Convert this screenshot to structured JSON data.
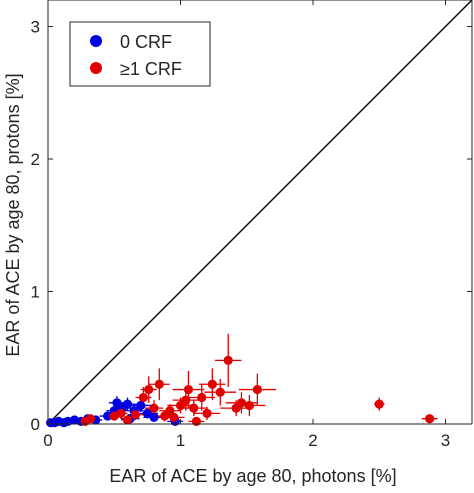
{
  "chart_data": {
    "type": "scatter",
    "xlabel": "EAR of ACE by age 80, photons [%]",
    "ylabel": "EAR of ACE by age 80, protons [%]",
    "xlim": [
      0,
      3.2
    ],
    "ylim": [
      0,
      3.2
    ],
    "xticks": [
      0,
      1,
      2,
      3
    ],
    "yticks": [
      0,
      1,
      2,
      3
    ],
    "grid": false,
    "legend_position": "top-left",
    "reference_line": "y = x",
    "series": [
      {
        "name": "0 CRF",
        "color": "#0000e0",
        "points": [
          {
            "x": 0.02,
            "y": 0.01,
            "xerr": 0.02,
            "yerr": 0.01
          },
          {
            "x": 0.05,
            "y": 0.01,
            "xerr": 0.02,
            "yerr": 0.01
          },
          {
            "x": 0.08,
            "y": 0.02,
            "xerr": 0.02,
            "yerr": 0.01
          },
          {
            "x": 0.12,
            "y": 0.01,
            "xerr": 0.03,
            "yerr": 0.01
          },
          {
            "x": 0.15,
            "y": 0.02,
            "xerr": 0.03,
            "yerr": 0.01
          },
          {
            "x": 0.2,
            "y": 0.03,
            "xerr": 0.04,
            "yerr": 0.01
          },
          {
            "x": 0.25,
            "y": 0.02,
            "xerr": 0.04,
            "yerr": 0.01
          },
          {
            "x": 0.3,
            "y": 0.04,
            "xerr": 0.05,
            "yerr": 0.02
          },
          {
            "x": 0.36,
            "y": 0.03,
            "xerr": 0.05,
            "yerr": 0.02
          },
          {
            "x": 0.45,
            "y": 0.06,
            "xerr": 0.06,
            "yerr": 0.03
          },
          {
            "x": 0.5,
            "y": 0.1,
            "xerr": 0.06,
            "yerr": 0.04
          },
          {
            "x": 0.52,
            "y": 0.16,
            "xerr": 0.06,
            "yerr": 0.05
          },
          {
            "x": 0.56,
            "y": 0.12,
            "xerr": 0.07,
            "yerr": 0.04
          },
          {
            "x": 0.6,
            "y": 0.15,
            "xerr": 0.07,
            "yerr": 0.05
          },
          {
            "x": 0.62,
            "y": 0.04,
            "xerr": 0.07,
            "yerr": 0.02
          },
          {
            "x": 0.65,
            "y": 0.1,
            "xerr": 0.07,
            "yerr": 0.04
          },
          {
            "x": 0.7,
            "y": 0.14,
            "xerr": 0.08,
            "yerr": 0.05
          },
          {
            "x": 0.75,
            "y": 0.08,
            "xerr": 0.08,
            "yerr": 0.04
          },
          {
            "x": 0.8,
            "y": 0.05,
            "xerr": 0.08,
            "yerr": 0.03
          },
          {
            "x": 0.96,
            "y": 0.02,
            "xerr": 0.06,
            "yerr": 0.02
          }
        ]
      },
      {
        "name": "≥1 CRF",
        "color": "#e00000",
        "points": [
          {
            "x": 0.28,
            "y": 0.02,
            "xerr": 0.04,
            "yerr": 0.02
          },
          {
            "x": 0.32,
            "y": 0.04,
            "xerr": 0.04,
            "yerr": 0.02
          },
          {
            "x": 0.5,
            "y": 0.06,
            "xerr": 0.05,
            "yerr": 0.03
          },
          {
            "x": 0.55,
            "y": 0.08,
            "xerr": 0.05,
            "yerr": 0.04
          },
          {
            "x": 0.6,
            "y": 0.03,
            "xerr": 0.05,
            "yerr": 0.02
          },
          {
            "x": 0.66,
            "y": 0.07,
            "xerr": 0.06,
            "yerr": 0.04
          },
          {
            "x": 0.72,
            "y": 0.2,
            "xerr": 0.06,
            "yerr": 0.08
          },
          {
            "x": 0.76,
            "y": 0.26,
            "xerr": 0.06,
            "yerr": 0.1
          },
          {
            "x": 0.8,
            "y": 0.12,
            "xerr": 0.07,
            "yerr": 0.06
          },
          {
            "x": 0.84,
            "y": 0.3,
            "xerr": 0.08,
            "yerr": 0.12
          },
          {
            "x": 0.88,
            "y": 0.06,
            "xerr": 0.07,
            "yerr": 0.04
          },
          {
            "x": 0.92,
            "y": 0.1,
            "xerr": 0.08,
            "yerr": 0.05
          },
          {
            "x": 0.95,
            "y": 0.05,
            "xerr": 0.08,
            "yerr": 0.03
          },
          {
            "x": 1.0,
            "y": 0.14,
            "xerr": 0.1,
            "yerr": 0.06
          },
          {
            "x": 1.04,
            "y": 0.18,
            "xerr": 0.1,
            "yerr": 0.08
          },
          {
            "x": 1.06,
            "y": 0.26,
            "xerr": 0.12,
            "yerr": 0.14
          },
          {
            "x": 1.1,
            "y": 0.12,
            "xerr": 0.1,
            "yerr": 0.06
          },
          {
            "x": 1.12,
            "y": 0.02,
            "xerr": 0.06,
            "yerr": 0.02
          },
          {
            "x": 1.16,
            "y": 0.2,
            "xerr": 0.1,
            "yerr": 0.1
          },
          {
            "x": 1.2,
            "y": 0.08,
            "xerr": 0.1,
            "yerr": 0.05
          },
          {
            "x": 1.24,
            "y": 0.3,
            "xerr": 0.1,
            "yerr": 0.12
          },
          {
            "x": 1.3,
            "y": 0.24,
            "xerr": 0.12,
            "yerr": 0.1
          },
          {
            "x": 1.36,
            "y": 0.48,
            "xerr": 0.1,
            "yerr": 0.2
          },
          {
            "x": 1.42,
            "y": 0.12,
            "xerr": 0.12,
            "yerr": 0.06
          },
          {
            "x": 1.46,
            "y": 0.16,
            "xerr": 0.12,
            "yerr": 0.08
          },
          {
            "x": 1.52,
            "y": 0.14,
            "xerr": 0.12,
            "yerr": 0.08
          },
          {
            "x": 1.58,
            "y": 0.26,
            "xerr": 0.14,
            "yerr": 0.12
          },
          {
            "x": 2.5,
            "y": 0.15,
            "xerr": 0.04,
            "yerr": 0.05
          },
          {
            "x": 2.88,
            "y": 0.04,
            "xerr": 0.06,
            "yerr": 0.03
          }
        ]
      }
    ]
  }
}
